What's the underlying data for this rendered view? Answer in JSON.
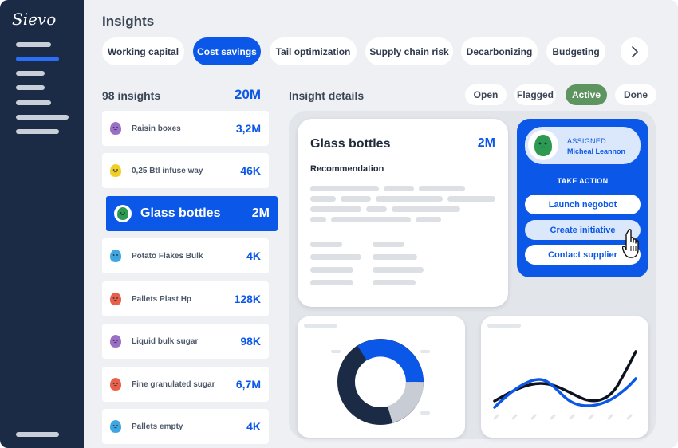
{
  "app": {
    "logo": "Sievo"
  },
  "page": {
    "title": "Insights"
  },
  "categories": [
    {
      "label": "Working capital",
      "active": false
    },
    {
      "label": "Cost savings",
      "active": true
    },
    {
      "label": "Tail optimization",
      "active": false
    },
    {
      "label": "Supply chain risk",
      "active": false
    },
    {
      "label": "Decarbonizing",
      "active": false
    },
    {
      "label": "Budgeting",
      "active": false
    }
  ],
  "insights_list": {
    "title": "98 insights",
    "total": "20M",
    "items": [
      {
        "label": "Raisin boxes",
        "value": "3,2M",
        "icon": "purple-blob-icon",
        "color": "#9b6fc6"
      },
      {
        "label": "0,25 Btl infuse way",
        "value": "46K",
        "icon": "yellow-blob-icon",
        "color": "#f2cf25"
      },
      {
        "label": "Glass bottles",
        "value": "2M",
        "icon": "green-blob-icon",
        "color": "#2d9a52",
        "active": true
      },
      {
        "label": "Potato Flakes Bulk",
        "value": "4K",
        "icon": "blue-blob-icon",
        "color": "#3fa6e0"
      },
      {
        "label": "Pallets Plast Hp",
        "value": "128K",
        "icon": "red-blob-icon",
        "color": "#e8604a"
      },
      {
        "label": "Liquid bulk sugar",
        "value": "98K",
        "icon": "purple-blob-icon",
        "color": "#9b6fc6"
      },
      {
        "label": "Fine granulated sugar",
        "value": "6,7M",
        "icon": "red-blob-icon",
        "color": "#e8604a"
      },
      {
        "label": "Pallets empty",
        "value": "4K",
        "icon": "blue-blob-icon",
        "color": "#3fa6e0"
      }
    ]
  },
  "details": {
    "title": "Insight details",
    "filters": [
      {
        "label": "Open",
        "active": false
      },
      {
        "label": "Flagged",
        "active": false
      },
      {
        "label": "Active",
        "active": true
      },
      {
        "label": "Done",
        "active": false
      }
    ],
    "card": {
      "title": "Glass bottles",
      "amount": "2M",
      "section": "Recommendation"
    },
    "assignee": {
      "label": "ASSIGNED",
      "name": "Micheal Leannon"
    },
    "take_action": "TAKE ACTION",
    "actions": [
      "Launch negobot",
      "Create initiative",
      "Contact supplier"
    ]
  },
  "colors": {
    "accent": "#0a57e8",
    "sidebar": "#1c2b45",
    "active_filter": "#5e9460"
  }
}
